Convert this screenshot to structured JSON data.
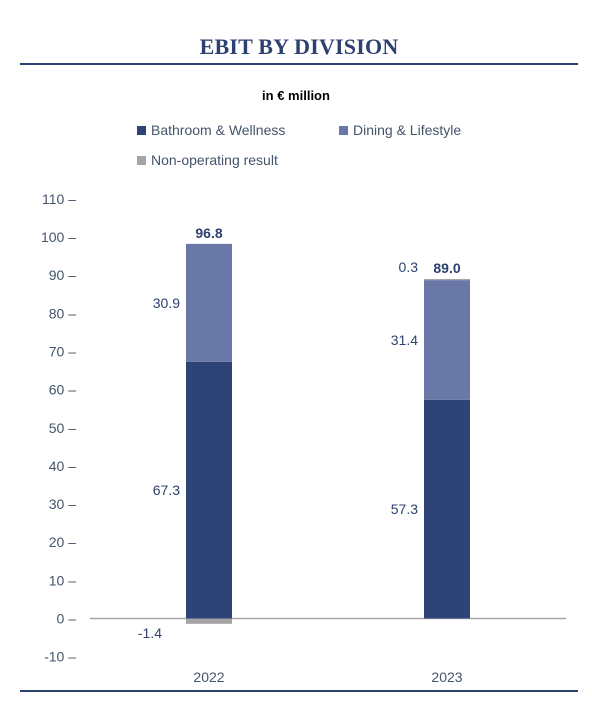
{
  "title": "EBIT BY DIVISION",
  "colors": {
    "bathroom": "#2e4476",
    "dining": "#6a78a8",
    "nonop": "#a5a5a5",
    "title": "#2d4170",
    "label": "#2d4170",
    "axis": "#44546a"
  },
  "chart_data": {
    "type": "bar",
    "stacked": true,
    "subtitle": "in € million",
    "categories": [
      "2022",
      "2023"
    ],
    "series": [
      {
        "name": "Bathroom & Wellness",
        "values": [
          67.3,
          57.3
        ],
        "value_labels": [
          "67.3",
          "57.3"
        ]
      },
      {
        "name": "Dining & Lifestyle",
        "values": [
          30.9,
          31.4
        ],
        "value_labels": [
          "30.9",
          "31.4"
        ]
      },
      {
        "name": "Non-operating result",
        "values": [
          -1.4,
          0.3
        ],
        "value_labels": [
          "-1.4",
          "0.3"
        ]
      }
    ],
    "totals": [
      "96.8",
      "89.0"
    ],
    "yticks": [
      110,
      100,
      90,
      80,
      70,
      60,
      50,
      40,
      30,
      20,
      10,
      0,
      -10
    ],
    "ytick_labels": [
      "110 –",
      "100 –",
      "90 –",
      "80 –",
      "70 –",
      "60 –",
      "50 –",
      "40 –",
      "30 –",
      "20 –",
      "10 –",
      "0 –",
      "-10 –"
    ],
    "ylim": [
      -10,
      110
    ],
    "grid": false,
    "legend_position": "top"
  }
}
